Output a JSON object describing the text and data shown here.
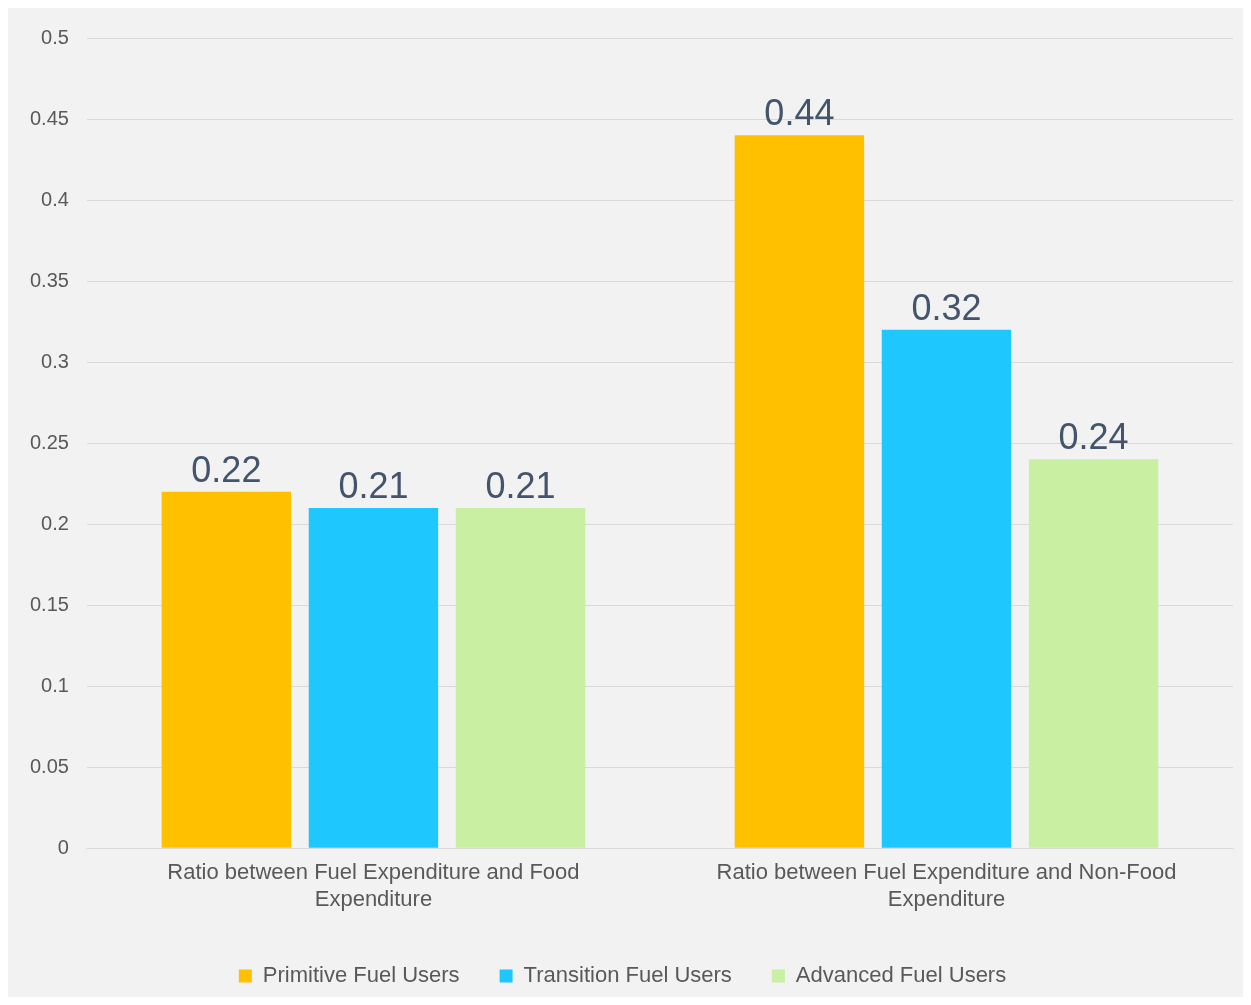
{
  "chart_data": {
    "type": "bar",
    "categories": [
      "Ratio between Fuel Expenditure and Food Expenditure",
      "Ratio between Fuel Expenditure and Non-Food Expenditure"
    ],
    "series": [
      {
        "name": "Primitive Fuel Users",
        "color": "#ffc000",
        "values": [
          0.22,
          0.44
        ]
      },
      {
        "name": "Transition Fuel Users",
        "color": "#1fc7ff",
        "values": [
          0.21,
          0.32
        ]
      },
      {
        "name": "Advanced Fuel Users",
        "color": "#c8efa2",
        "values": [
          0.21,
          0.24
        ]
      }
    ],
    "ylim": [
      0,
      0.5
    ],
    "yticks": [
      0,
      0.05,
      0.1,
      0.15,
      0.2,
      0.25,
      0.3,
      0.35,
      0.4,
      0.45,
      0.5
    ],
    "grid": "y",
    "legend": "bottom",
    "data_labels": true
  }
}
